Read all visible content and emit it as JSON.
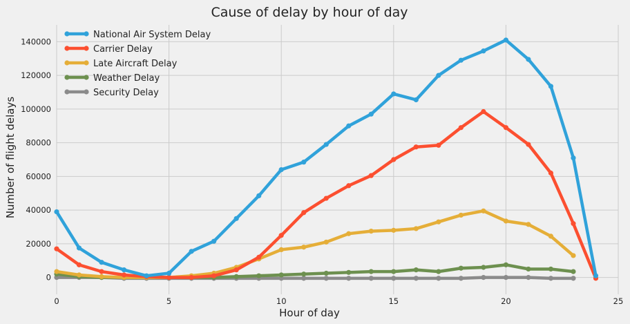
{
  "chart_data": {
    "type": "line",
    "title": "Cause of delay by hour of day",
    "xlabel": "Hour of day",
    "ylabel": "Number of flight delays",
    "xlim": [
      0,
      25
    ],
    "ylim": [
      -10000,
      150000
    ],
    "xticks": [
      0,
      5,
      10,
      15,
      20,
      25
    ],
    "yticks": [
      0,
      20000,
      40000,
      60000,
      80000,
      100000,
      120000,
      140000
    ],
    "grid": true,
    "legend_position": "top-left",
    "x": [
      0,
      1,
      2,
      3,
      4,
      5,
      6,
      7,
      8,
      9,
      10,
      11,
      12,
      13,
      14,
      15,
      16,
      17,
      18,
      19,
      20,
      21,
      22,
      23,
      24
    ],
    "series": [
      {
        "name": "National Air System Delay",
        "color": "#30a2da",
        "values": [
          39000,
          17500,
          9000,
          4500,
          1000,
          2500,
          15500,
          21500,
          35000,
          48500,
          64000,
          68500,
          79000,
          90000,
          97000,
          109000,
          105500,
          120000,
          129000,
          134500,
          141000,
          129500,
          113500,
          71000,
          1000
        ]
      },
      {
        "name": "Carrier Delay",
        "color": "#fc4f30",
        "values": [
          17000,
          7500,
          3500,
          1500,
          500,
          0,
          0,
          1000,
          4500,
          12000,
          25000,
          38500,
          47000,
          54500,
          60500,
          70000,
          77500,
          78500,
          89000,
          98500,
          89000,
          79000,
          62000,
          32000,
          -500
        ]
      },
      {
        "name": "Late Aircraft Delay",
        "color": "#e5ae38",
        "values": [
          3500,
          1500,
          500,
          0,
          0,
          0,
          1000,
          2500,
          6000,
          11000,
          16500,
          18000,
          21000,
          26000,
          27500,
          28000,
          29000,
          33000,
          37000,
          39500,
          33500,
          31500,
          24500,
          13000,
          null
        ]
      },
      {
        "name": "Weather Delay",
        "color": "#6d904f",
        "values": [
          2000,
          500,
          0,
          0,
          0,
          0,
          0,
          0,
          500,
          1000,
          1500,
          2000,
          2500,
          3000,
          3500,
          3500,
          4500,
          3500,
          5500,
          6000,
          7500,
          5000,
          5000,
          3500,
          null
        ]
      },
      {
        "name": "Security Delay",
        "color": "#8b8b8b",
        "values": [
          0,
          0,
          0,
          -500,
          -500,
          -500,
          -500,
          -500,
          -500,
          -500,
          -500,
          -500,
          -500,
          -500,
          -500,
          -500,
          -500,
          -500,
          -500,
          0,
          0,
          0,
          -500,
          -500,
          null
        ]
      }
    ]
  }
}
